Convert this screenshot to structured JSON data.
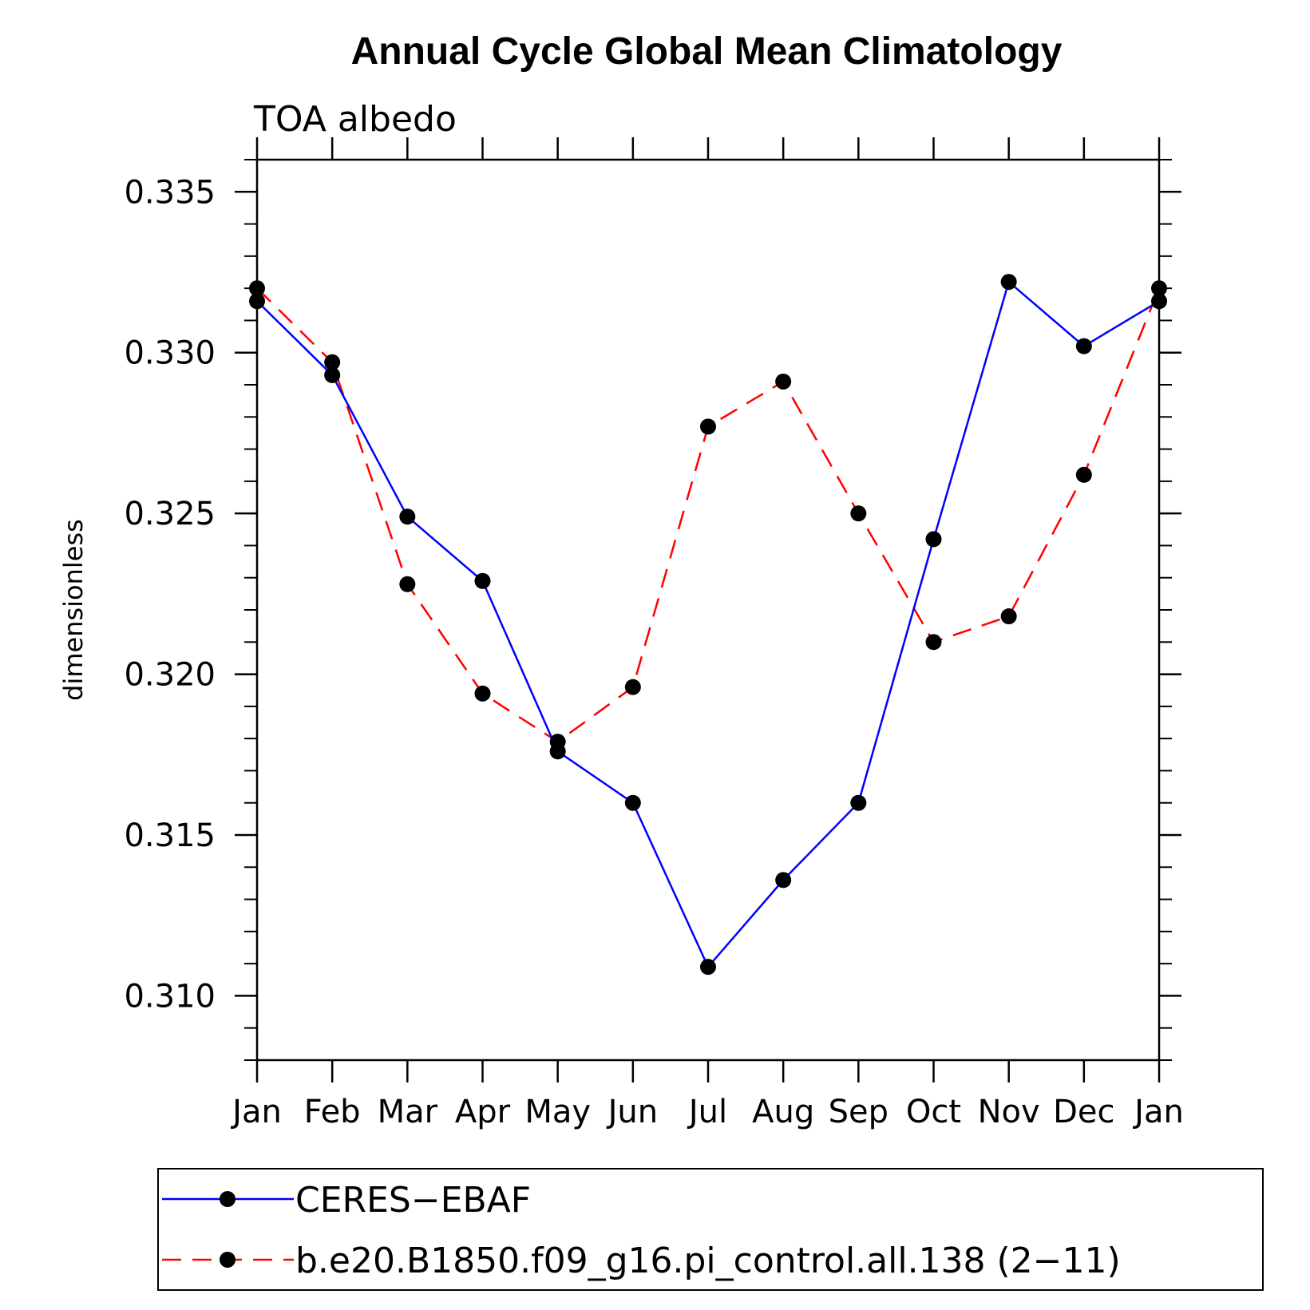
{
  "chart_data": {
    "type": "line",
    "title": "Annual Cycle Global Mean Climatology",
    "subtitle": "TOA albedo",
    "ylabel": "dimensionless",
    "xlabel": "",
    "categories": [
      "Jan",
      "Feb",
      "Mar",
      "Apr",
      "May",
      "Jun",
      "Jul",
      "Aug",
      "Sep",
      "Oct",
      "Nov",
      "Dec",
      "Jan"
    ],
    "ylim": [
      0.308,
      0.336
    ],
    "yticks": [
      0.31,
      0.315,
      0.32,
      0.325,
      0.33,
      0.335
    ],
    "ytick_labels": [
      "0.310",
      "0.315",
      "0.320",
      "0.325",
      "0.330",
      "0.335"
    ],
    "y_minor_step": 0.001,
    "grid": false,
    "legend_position": "bottom",
    "series": [
      {
        "name": "CERES−EBAF",
        "color": "#0000ff",
        "dash": "solid",
        "values": [
          0.3316,
          0.3293,
          0.3249,
          0.3229,
          0.3176,
          0.316,
          0.3109,
          0.3136,
          0.316,
          0.3242,
          0.3322,
          0.3302,
          0.3316
        ]
      },
      {
        "name": "b.e20.B1850.f09_g16.pi_control.all.138 (2−11)",
        "color": "#ff0000",
        "dash": "dashed",
        "values": [
          0.332,
          0.3297,
          0.3228,
          0.3194,
          0.3179,
          0.3196,
          0.3277,
          0.3291,
          0.325,
          0.321,
          0.3218,
          0.3262,
          0.332
        ]
      }
    ]
  }
}
